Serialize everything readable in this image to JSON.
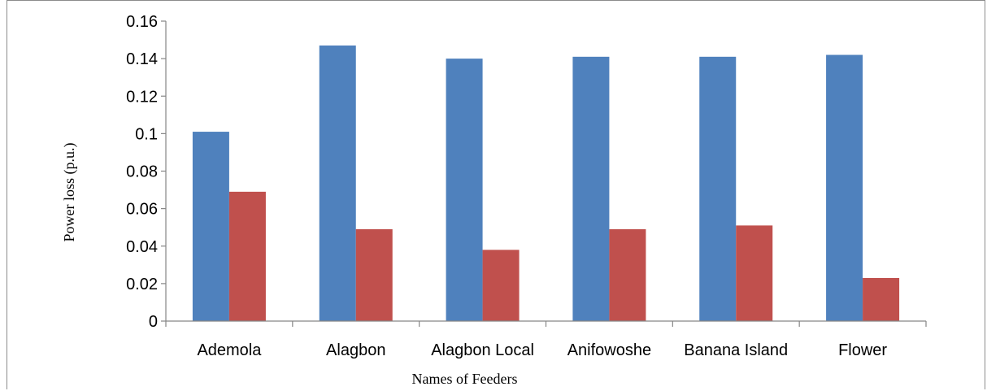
{
  "chart_data": {
    "type": "bar",
    "title": "",
    "xlabel": "Names of Feeders",
    "ylabel": "Power  loss (p.u.)",
    "categories": [
      "Ademola",
      "Alagbon",
      "Alagbon Local",
      "Anifowoshe",
      "Banana Island",
      "Flower"
    ],
    "series": [
      {
        "values": [
          0.101,
          0.147,
          0.14,
          0.141,
          0.141,
          0.142
        ],
        "color": "#4F81BD"
      },
      {
        "values": [
          0.069,
          0.049,
          0.038,
          0.049,
          0.051,
          0.023
        ],
        "color": "#C0504D"
      }
    ],
    "ylim": [
      0,
      0.16
    ],
    "yticks": [
      "0",
      "0.02",
      "0.04",
      "0.06",
      "0.08",
      "0.1",
      "0.12",
      "0.14",
      "0.16"
    ],
    "grid": false,
    "legend": "none"
  }
}
